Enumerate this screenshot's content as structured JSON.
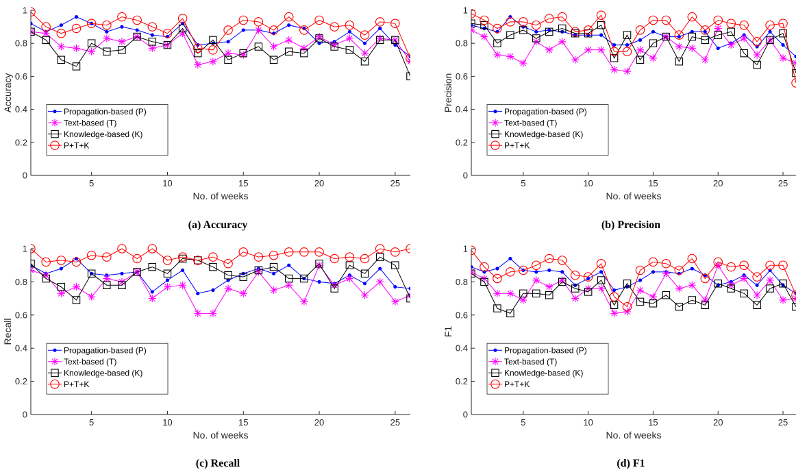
{
  "chart_data": [
    {
      "type": "line",
      "caption": "(a) Accuracy",
      "xlabel": "No. of weeks",
      "ylabel": "Accuracy",
      "xlim": [
        1,
        26
      ],
      "ylim": [
        0,
        1
      ],
      "xticks": [
        5,
        10,
        15,
        20,
        25
      ],
      "yticks": [
        0,
        0.2,
        0.4,
        0.6,
        0.8,
        1
      ],
      "ytick_labels": [
        "0",
        "0.2",
        "0.4",
        "0.6",
        "0.8",
        "1"
      ],
      "grid": false,
      "legend_position": "center-left",
      "x": [
        1,
        2,
        3,
        4,
        5,
        6,
        7,
        8,
        9,
        10,
        11,
        12,
        13,
        14,
        15,
        16,
        17,
        18,
        19,
        20,
        21,
        22,
        23,
        24,
        25,
        26
      ],
      "series": [
        {
          "name": "Propagation-based (P)",
          "color": "#0000ff",
          "marker": "dot",
          "values": [
            0.92,
            0.87,
            0.91,
            0.96,
            0.92,
            0.87,
            0.9,
            0.88,
            0.85,
            0.84,
            0.92,
            0.79,
            0.8,
            0.81,
            0.88,
            0.88,
            0.86,
            0.91,
            0.89,
            0.8,
            0.81,
            0.87,
            0.8,
            0.89,
            0.79,
            0.72
          ]
        },
        {
          "name": "Text-based (T)",
          "color": "#ff00ff",
          "marker": "asterisk",
          "values": [
            0.87,
            0.86,
            0.78,
            0.77,
            0.75,
            0.83,
            0.81,
            0.84,
            0.77,
            0.79,
            0.86,
            0.67,
            0.69,
            0.74,
            0.73,
            0.88,
            0.78,
            0.82,
            0.77,
            0.84,
            0.79,
            0.83,
            0.74,
            0.83,
            0.82,
            0.69
          ]
        },
        {
          "name": "Knowledge-based (K)",
          "color": "#000000",
          "marker": "square",
          "values": [
            0.87,
            0.82,
            0.7,
            0.66,
            0.8,
            0.75,
            0.76,
            0.84,
            0.81,
            0.79,
            0.89,
            0.74,
            0.82,
            0.7,
            0.74,
            0.78,
            0.7,
            0.75,
            0.74,
            0.83,
            0.78,
            0.76,
            0.69,
            0.82,
            0.82,
            0.6
          ]
        },
        {
          "name": "P+T+K",
          "color": "#ff0000",
          "marker": "circle",
          "values": [
            0.99,
            0.9,
            0.86,
            0.89,
            0.92,
            0.91,
            0.96,
            0.94,
            0.9,
            0.86,
            0.95,
            0.77,
            0.76,
            0.88,
            0.94,
            0.93,
            0.88,
            0.96,
            0.88,
            0.94,
            0.9,
            0.91,
            0.85,
            0.93,
            0.92,
            0.71
          ]
        }
      ]
    },
    {
      "type": "line",
      "caption": "(b) Precision",
      "xlabel": "No. of weeks",
      "ylabel": "Precision",
      "xlim": [
        1,
        26
      ],
      "ylim": [
        0,
        1
      ],
      "xticks": [
        5,
        10,
        15,
        20,
        25
      ],
      "yticks": [
        0,
        0.2,
        0.4,
        0.6,
        0.8,
        1
      ],
      "ytick_labels": [
        "0",
        "0.2",
        "0.4",
        "0.6",
        "0.8",
        "1"
      ],
      "grid": false,
      "legend_position": "center-left",
      "x": [
        1,
        2,
        3,
        4,
        5,
        6,
        7,
        8,
        9,
        10,
        11,
        12,
        13,
        14,
        15,
        16,
        17,
        18,
        19,
        20,
        21,
        22,
        23,
        24,
        25,
        26
      ],
      "series": [
        {
          "name": "Propagation-based (P)",
          "color": "#0000ff",
          "marker": "dot",
          "values": [
            0.91,
            0.89,
            0.87,
            0.96,
            0.9,
            0.87,
            0.88,
            0.87,
            0.85,
            0.85,
            0.85,
            0.79,
            0.79,
            0.82,
            0.87,
            0.84,
            0.84,
            0.87,
            0.87,
            0.77,
            0.8,
            0.85,
            0.78,
            0.87,
            0.79,
            0.72
          ]
        },
        {
          "name": "Text-based (T)",
          "color": "#ff00ff",
          "marker": "asterisk",
          "values": [
            0.88,
            0.84,
            0.73,
            0.72,
            0.68,
            0.81,
            0.76,
            0.81,
            0.7,
            0.76,
            0.76,
            0.64,
            0.63,
            0.76,
            0.71,
            0.84,
            0.78,
            0.77,
            0.7,
            0.89,
            0.79,
            0.83,
            0.73,
            0.82,
            0.71,
            0.68
          ]
        },
        {
          "name": "Knowledge-based (K)",
          "color": "#000000",
          "marker": "square",
          "values": [
            0.92,
            0.91,
            0.8,
            0.85,
            0.88,
            0.83,
            0.87,
            0.89,
            0.86,
            0.86,
            0.91,
            0.71,
            0.85,
            0.7,
            0.8,
            0.84,
            0.69,
            0.84,
            0.82,
            0.85,
            0.87,
            0.74,
            0.67,
            0.82,
            0.86,
            0.62
          ]
        },
        {
          "name": "P+T+K",
          "color": "#ff0000",
          "marker": "circle",
          "values": [
            0.98,
            0.94,
            0.89,
            0.93,
            0.93,
            0.91,
            0.95,
            0.96,
            0.87,
            0.88,
            0.97,
            0.75,
            0.75,
            0.88,
            0.94,
            0.94,
            0.85,
            0.96,
            0.88,
            0.94,
            0.92,
            0.91,
            0.81,
            0.91,
            0.92,
            0.56
          ]
        }
      ]
    },
    {
      "type": "line",
      "caption": "(c) Recall",
      "xlabel": "No. of weeks",
      "ylabel": "Recall",
      "xlim": [
        1,
        26
      ],
      "ylim": [
        0,
        1
      ],
      "xticks": [
        5,
        10,
        15,
        20,
        25
      ],
      "yticks": [
        0,
        0.2,
        0.4,
        0.6,
        0.8,
        1
      ],
      "ytick_labels": [
        "0",
        "0.2",
        "0.4",
        "0.6",
        "0.8",
        "1"
      ],
      "grid": false,
      "legend_position": "center-left",
      "x": [
        1,
        2,
        3,
        4,
        5,
        6,
        7,
        8,
        9,
        10,
        11,
        12,
        13,
        14,
        15,
        16,
        17,
        18,
        19,
        20,
        21,
        22,
        23,
        24,
        25,
        26
      ],
      "series": [
        {
          "name": "Propagation-based (P)",
          "color": "#0000ff",
          "marker": "dot",
          "values": [
            0.9,
            0.85,
            0.88,
            0.94,
            0.85,
            0.84,
            0.85,
            0.86,
            0.74,
            0.81,
            0.87,
            0.73,
            0.75,
            0.81,
            0.85,
            0.88,
            0.85,
            0.9,
            0.82,
            0.8,
            0.79,
            0.84,
            0.79,
            0.88,
            0.77,
            0.76
          ]
        },
        {
          "name": "Text-based (T)",
          "color": "#ff00ff",
          "marker": "asterisk",
          "values": [
            0.87,
            0.84,
            0.73,
            0.77,
            0.71,
            0.82,
            0.8,
            0.86,
            0.7,
            0.77,
            0.78,
            0.61,
            0.61,
            0.76,
            0.73,
            0.86,
            0.75,
            0.78,
            0.68,
            0.9,
            0.78,
            0.82,
            0.72,
            0.8,
            0.68,
            0.72
          ]
        },
        {
          "name": "Knowledge-based (K)",
          "color": "#000000",
          "marker": "square",
          "values": [
            0.91,
            0.82,
            0.77,
            0.69,
            0.85,
            0.78,
            0.78,
            0.86,
            0.89,
            0.85,
            0.94,
            0.93,
            0.89,
            0.84,
            0.83,
            0.87,
            0.89,
            0.82,
            0.82,
            0.91,
            0.76,
            0.9,
            0.85,
            0.95,
            0.9,
            0.7
          ]
        },
        {
          "name": "P+T+K",
          "color": "#ff0000",
          "marker": "circle",
          "values": [
            1.0,
            0.92,
            0.93,
            0.92,
            0.96,
            0.95,
            1.0,
            0.94,
            1.0,
            0.93,
            0.95,
            0.93,
            0.95,
            0.91,
            0.98,
            0.95,
            0.96,
            0.98,
            0.98,
            0.98,
            0.94,
            0.95,
            0.94,
            1.0,
            0.98,
            1.0
          ]
        }
      ]
    },
    {
      "type": "line",
      "caption": "(d) F1",
      "xlabel": "No. of weeks",
      "ylabel": "F1",
      "xlim": [
        1,
        26
      ],
      "ylim": [
        0,
        1
      ],
      "xticks": [
        5,
        10,
        15,
        20,
        25
      ],
      "yticks": [
        0,
        0.2,
        0.4,
        0.6,
        0.8,
        1
      ],
      "ytick_labels": [
        "0",
        "0.2",
        "0.4",
        "0.6",
        "0.8",
        "1"
      ],
      "grid": false,
      "legend_position": "center-left",
      "x": [
        1,
        2,
        3,
        4,
        5,
        6,
        7,
        8,
        9,
        10,
        11,
        12,
        13,
        14,
        15,
        16,
        17,
        18,
        19,
        20,
        21,
        22,
        23,
        24,
        25,
        26
      ],
      "series": [
        {
          "name": "Propagation-based (P)",
          "color": "#0000ff",
          "marker": "dot",
          "values": [
            0.89,
            0.86,
            0.88,
            0.94,
            0.87,
            0.86,
            0.87,
            0.86,
            0.78,
            0.82,
            0.86,
            0.75,
            0.77,
            0.81,
            0.86,
            0.86,
            0.85,
            0.88,
            0.84,
            0.78,
            0.8,
            0.84,
            0.78,
            0.87,
            0.78,
            0.73
          ]
        },
        {
          "name": "Text-based (T)",
          "color": "#ff00ff",
          "marker": "asterisk",
          "values": [
            0.86,
            0.82,
            0.73,
            0.73,
            0.69,
            0.81,
            0.77,
            0.81,
            0.7,
            0.76,
            0.76,
            0.61,
            0.62,
            0.75,
            0.71,
            0.85,
            0.76,
            0.78,
            0.69,
            0.9,
            0.78,
            0.82,
            0.72,
            0.81,
            0.69,
            0.7
          ]
        },
        {
          "name": "Knowledge-based (K)",
          "color": "#000000",
          "marker": "square",
          "values": [
            0.85,
            0.8,
            0.64,
            0.61,
            0.73,
            0.73,
            0.72,
            0.8,
            0.76,
            0.74,
            0.81,
            0.66,
            0.79,
            0.68,
            0.67,
            0.72,
            0.65,
            0.69,
            0.66,
            0.79,
            0.76,
            0.73,
            0.66,
            0.76,
            0.79,
            0.65
          ]
        },
        {
          "name": "P+T+K",
          "color": "#ff0000",
          "marker": "circle",
          "values": [
            0.99,
            0.89,
            0.82,
            0.86,
            0.87,
            0.9,
            0.94,
            0.93,
            0.84,
            0.83,
            0.91,
            0.71,
            0.65,
            0.87,
            0.92,
            0.91,
            0.87,
            0.94,
            0.82,
            0.92,
            0.89,
            0.9,
            0.83,
            0.9,
            0.9,
            0.72
          ]
        }
      ]
    }
  ]
}
